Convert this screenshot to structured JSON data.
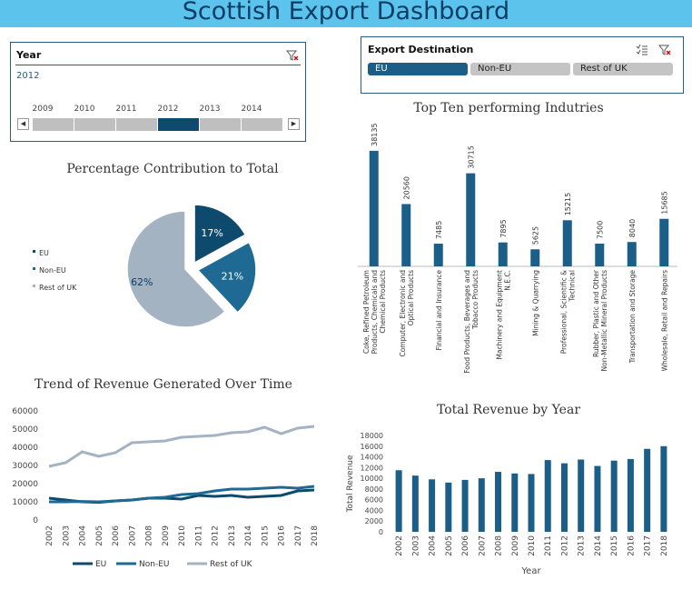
{
  "title": "Scottish Export Dashboard",
  "year_slicer": {
    "header": "Year",
    "selected": "2012",
    "years": [
      "2009",
      "2010",
      "2011",
      "2012",
      "2013",
      "2014"
    ],
    "selected_index": 3
  },
  "destination_slicer": {
    "header": "Export Destination",
    "options": [
      {
        "label": "EU",
        "selected": true
      },
      {
        "label": "Non-EU",
        "selected": false
      },
      {
        "label": "Rest of UK",
        "selected": false
      }
    ]
  },
  "colors": {
    "eu": "#0d4a6e",
    "non_eu": "#1e6a94",
    "rest_uk": "#a4b3c2",
    "bar": "#1b5e88",
    "accent": "#5bc3ec"
  },
  "chart_data": [
    {
      "type": "pie",
      "title": "Percentage Contribution to Total",
      "labels": [
        "EU",
        "Non-EU",
        "Rest of UK"
      ],
      "values": [
        17,
        21,
        62
      ],
      "data_labels": [
        "17%",
        "21%",
        "62%"
      ],
      "legend_position": "left"
    },
    {
      "type": "bar",
      "title": "Top Ten performing Indutries",
      "categories": [
        "Coke, Refined Petroleum Products, Chemicals and Chemical Products",
        "Computer, Electronic and Optical Products",
        "Financial and Insurance",
        "Food Products, Beverages and Tobacco Products",
        "Machinery and Equipment N.E.C.",
        "Mining & Quarrying",
        "Professional, Scientific & Technical",
        "Rubber, Plastic and Other Non-Metallic Mineral Products",
        "Transportation and Storage",
        "Wholesale, Retail and Repairs"
      ],
      "category_lines": [
        [
          "Coke, Refined Petroleum",
          "Products, Chemicals and",
          "Chemical Products"
        ],
        [
          "Computer, Electronic and",
          "Optical Products"
        ],
        [
          "Financial and Insurance"
        ],
        [
          "Food Products, Beverages and",
          "Tobacco Products"
        ],
        [
          "Machinery and Equipment",
          "N.E.C."
        ],
        [
          "Mining & Quarrying"
        ],
        [
          "Professional, Scientific &",
          "Technical"
        ],
        [
          "Rubber, Plastic and Other",
          "Non-Metallic Mineral Products"
        ],
        [
          "Transportation and Storage"
        ],
        [
          "Wholesale, Retail and Repairs"
        ]
      ],
      "values": [
        38135,
        20560,
        7485,
        30715,
        7895,
        5625,
        15215,
        7500,
        8040,
        15685
      ],
      "ylim": [
        0,
        45000
      ],
      "grid": false
    },
    {
      "type": "line",
      "title": "Trend of Revenue Generated Over Time",
      "x": [
        "2002",
        "2003",
        "2004",
        "2005",
        "2006",
        "2007",
        "2008",
        "2009",
        "2010",
        "2011",
        "2012",
        "2013",
        "2014",
        "2015",
        "2016",
        "2017",
        "2018"
      ],
      "series": [
        {
          "name": "EU",
          "values": [
            11500,
            10500,
            9500,
            9200,
            10000,
            10500,
            11500,
            11500,
            11000,
            13000,
            12500,
            13000,
            12000,
            12500,
            13000,
            15500,
            16000
          ]
        },
        {
          "name": "Non-EU",
          "values": [
            9500,
            9500,
            9700,
            9500,
            10000,
            10500,
            11500,
            12000,
            13500,
            14000,
            15500,
            16500,
            16500,
            17000,
            17500,
            17000,
            18000
          ]
        },
        {
          "name": "Rest of UK",
          "values": [
            29000,
            31000,
            37000,
            34500,
            36500,
            42000,
            42500,
            43000,
            45000,
            45500,
            46000,
            47500,
            48000,
            50500,
            47000,
            50000,
            51000
          ]
        }
      ],
      "yticks": [
        "0",
        "10000",
        "20000",
        "30000",
        "40000",
        "50000",
        "60000"
      ],
      "ylim": [
        0,
        60000
      ],
      "legend_position": "bottom"
    },
    {
      "type": "bar",
      "title": "Total Revenue by Year",
      "xlabel": "Year",
      "ylabel": "Total Revenue",
      "categories": [
        "2002",
        "2003",
        "2004",
        "2005",
        "2006",
        "2007",
        "2008",
        "2009",
        "2010",
        "2011",
        "2012",
        "2013",
        "2014",
        "2015",
        "2016",
        "2017",
        "2018"
      ],
      "values": [
        11500,
        10500,
        9800,
        9200,
        9700,
        10000,
        11200,
        10900,
        10800,
        13400,
        12800,
        13500,
        12300,
        13300,
        13600,
        15500,
        16000
      ],
      "yticks": [
        "0",
        "2000",
        "4000",
        "6000",
        "8000",
        "10000",
        "12000",
        "14000",
        "16000",
        "18000"
      ],
      "ylim": [
        0,
        18000
      ]
    }
  ]
}
